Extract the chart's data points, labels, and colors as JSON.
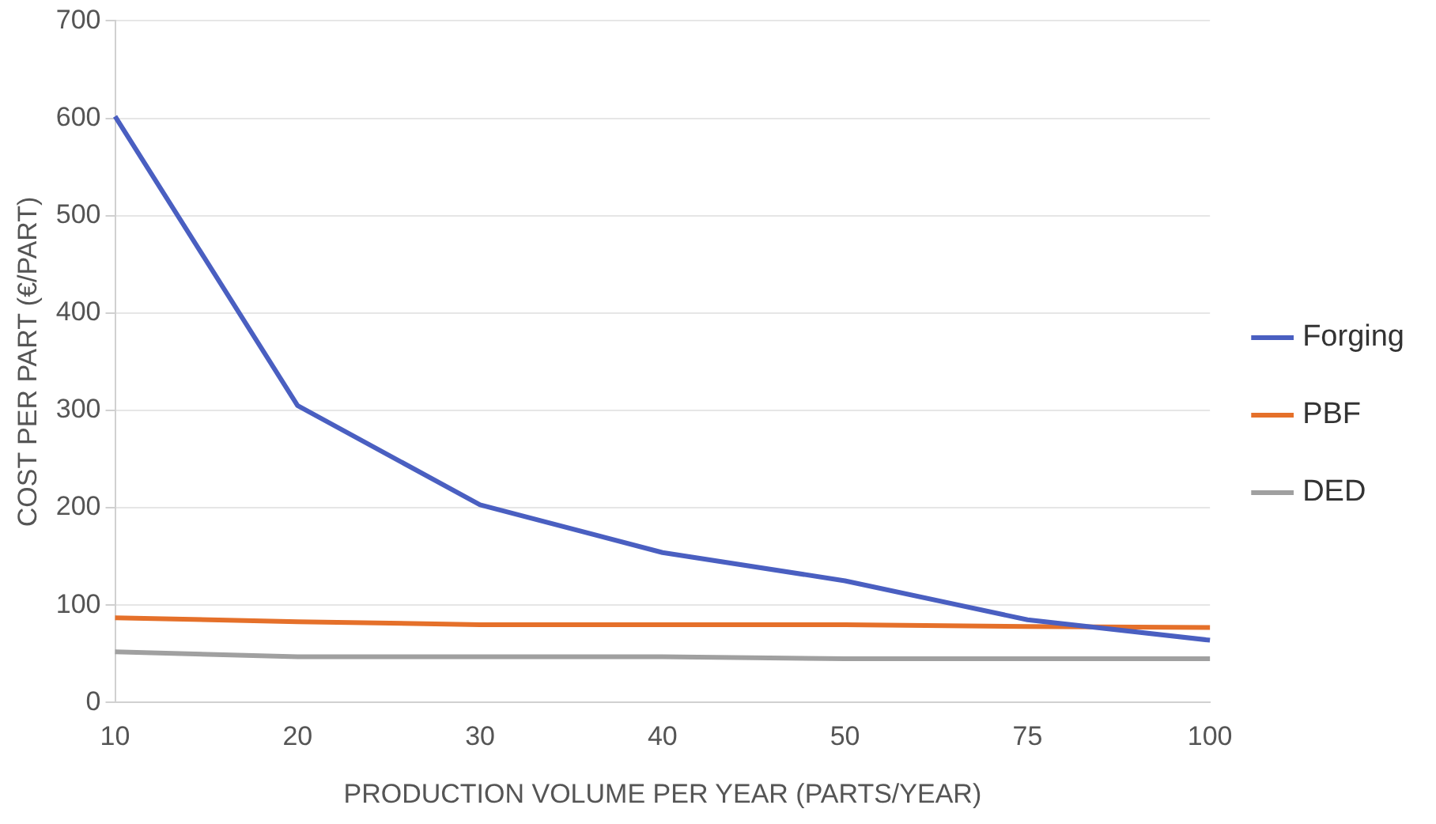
{
  "chart_data": {
    "type": "line",
    "xlabel": "PRODUCTION VOLUME PER YEAR (PARTS/YEAR)",
    "ylabel": "COST PER PART (€/PART)",
    "categories": [
      "10",
      "20",
      "30",
      "40",
      "50",
      "75",
      "100"
    ],
    "series": [
      {
        "name": "Forging",
        "color": "#4a5fc1",
        "values": [
          602,
          305,
          203,
          154,
          125,
          85,
          64
        ]
      },
      {
        "name": "PBF",
        "color": "#e5702a",
        "values": [
          87,
          83,
          80,
          80,
          80,
          78,
          77
        ]
      },
      {
        "name": "DED",
        "color": "#a0a0a0",
        "values": [
          52,
          47,
          47,
          47,
          45,
          45,
          45
        ]
      }
    ],
    "ylim": [
      0,
      700
    ],
    "yticks": [
      0,
      100,
      200,
      300,
      400,
      500,
      600,
      700
    ],
    "grid": "y",
    "legend": "right",
    "marker": "none",
    "line_style": "solid"
  }
}
